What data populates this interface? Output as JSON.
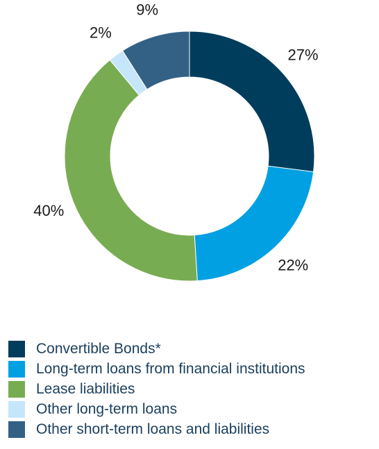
{
  "chart_data": {
    "type": "pie",
    "donut": true,
    "title": "",
    "categories": [
      "Convertible Bonds*",
      "Long-term loans from financial institutions",
      "Lease liabilities",
      "Other long-term loans",
      "Other short-term loans and liabilities"
    ],
    "values": [
      27,
      22,
      40,
      2,
      9
    ],
    "value_labels": [
      "27%",
      "22%",
      "40%",
      "2%",
      "9%"
    ],
    "colors": [
      "#003d5c",
      "#00a0e3",
      "#78ac52",
      "#c5e6fa",
      "#336186"
    ],
    "legend_position": "bottom"
  }
}
